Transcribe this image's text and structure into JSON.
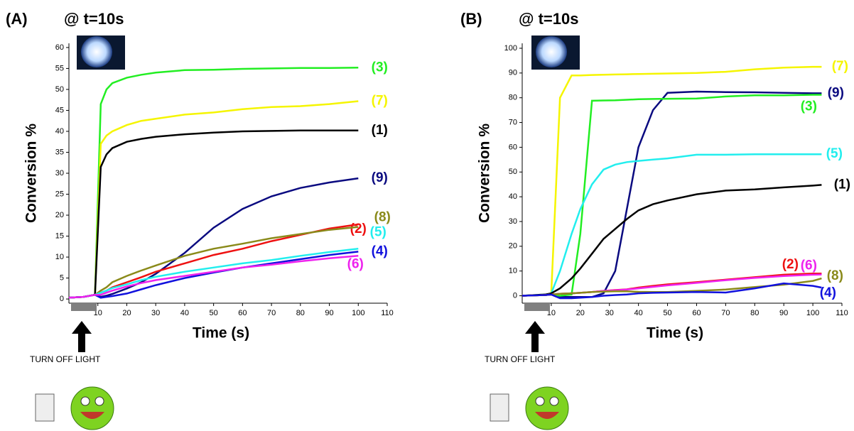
{
  "chart_data": [
    {
      "type": "line",
      "panel_label": "(A)",
      "annotation": "@ t=10s",
      "x_label": "Time (s)",
      "y_label": "Conversion %",
      "note": "TURN OFF LIGHT",
      "xlim": [
        0,
        110
      ],
      "ylim": [
        -1,
        61
      ],
      "xticks": [
        10,
        20,
        30,
        40,
        50,
        60,
        70,
        80,
        90,
        100,
        110
      ],
      "yticks": [
        0,
        5,
        10,
        15,
        20,
        25,
        30,
        35,
        40,
        45,
        50,
        55,
        60
      ],
      "x": [
        0,
        5,
        9,
        11,
        13,
        15,
        20,
        25,
        30,
        40,
        50,
        60,
        70,
        80,
        90,
        100
      ],
      "series": [
        {
          "name": "(3)",
          "color": "#22ee22",
          "values": [
            0.3,
            0.5,
            1,
            46.5,
            50,
            51.5,
            52.8,
            53.5,
            54,
            54.6,
            54.7,
            54.9,
            55,
            55.1,
            55.1,
            55.2
          ]
        },
        {
          "name": "(7)",
          "color": "#f5f500",
          "values": [
            0.3,
            0.5,
            1,
            37,
            39,
            40,
            41.5,
            42.5,
            43,
            44,
            44.5,
            45.3,
            45.8,
            46,
            46.5,
            47.2
          ]
        },
        {
          "name": "(1)",
          "color": "#000000",
          "values": [
            0.3,
            0.5,
            1,
            31.5,
            34.5,
            36,
            37.5,
            38.2,
            38.7,
            39.3,
            39.7,
            40,
            40.1,
            40.2,
            40.2,
            40.2
          ]
        },
        {
          "name": "(9)",
          "color": "#0a0a80",
          "values": [
            0.3,
            0.5,
            1,
            0.5,
            0.8,
            1.2,
            2.5,
            4,
            6,
            11,
            17,
            21.5,
            24.5,
            26.5,
            27.8,
            28.8
          ]
        },
        {
          "name": "(2)",
          "color": "#ee1111",
          "values": [
            0.3,
            0.5,
            1,
            1.5,
            2,
            2.8,
            4,
            5.2,
            6.5,
            8.5,
            10.5,
            12,
            13.8,
            15.3,
            16.8,
            17.8
          ]
        },
        {
          "name": "(8)",
          "color": "#8a8a1a",
          "values": [
            0.3,
            0.5,
            1,
            2,
            2.8,
            4,
            5.5,
            6.8,
            8,
            10.3,
            12,
            13.2,
            14.5,
            15.5,
            16.5,
            17.2
          ]
        },
        {
          "name": "(5)",
          "color": "#22eeee",
          "values": [
            0.3,
            0.5,
            1,
            1.5,
            2,
            2.6,
            3.5,
            4.5,
            5.3,
            6.5,
            7.5,
            8.5,
            9.3,
            10.3,
            11.2,
            12
          ]
        },
        {
          "name": "(4)",
          "color": "#1111dd",
          "values": [
            0.3,
            0.5,
            1,
            0.3,
            0.5,
            0.7,
            1.3,
            2.3,
            3.3,
            5,
            6.3,
            7.5,
            8.5,
            9.5,
            10.5,
            11.3
          ]
        },
        {
          "name": "(6)",
          "color": "#ee22ee",
          "values": [
            0.3,
            0.5,
            1,
            1,
            1.5,
            2,
            3,
            3.8,
            4.5,
            5.5,
            6.5,
            7.5,
            8.2,
            9,
            9.7,
            10.3
          ]
        }
      ]
    },
    {
      "type": "line",
      "panel_label": "(B)",
      "annotation": "@ t=10s",
      "x_label": "Time (s)",
      "y_label": "Conversion %",
      "note": "TURN OFF LIGHT",
      "xlim": [
        0,
        110
      ],
      "ylim": [
        -3,
        102
      ],
      "xticks": [
        10,
        20,
        30,
        40,
        50,
        60,
        70,
        80,
        90,
        100,
        110
      ],
      "yticks": [
        0,
        10,
        20,
        30,
        40,
        50,
        60,
        70,
        80,
        90,
        100
      ],
      "x": [
        0,
        8,
        10,
        13,
        17,
        20,
        24,
        28,
        32,
        36,
        40,
        45,
        50,
        60,
        70,
        80,
        90,
        100,
        103
      ],
      "series": [
        {
          "name": "(7)",
          "color": "#f5f500",
          "values": [
            0,
            0.5,
            1,
            80,
            89,
            89,
            89.2,
            89.3,
            89.4,
            89.5,
            89.6,
            89.7,
            89.8,
            90,
            90.5,
            91.5,
            92.2,
            92.5,
            92.5
          ]
        },
        {
          "name": "(9)",
          "color": "#0a0a80",
          "values": [
            0,
            0.3,
            0.5,
            -0.5,
            -0.5,
            -0.5,
            -0.5,
            1,
            10,
            35,
            60,
            75,
            82,
            82.5,
            82.3,
            82.2,
            82,
            81.8,
            81.8
          ]
        },
        {
          "name": "(3)",
          "color": "#22ee22",
          "values": [
            0,
            0.3,
            0.5,
            0,
            0.5,
            25,
            78.8,
            78.9,
            79,
            79.2,
            79.4,
            79.5,
            79.6,
            79.7,
            80.5,
            81,
            81,
            81.2,
            81.2
          ]
        },
        {
          "name": "(5)",
          "color": "#22eeee",
          "values": [
            0,
            0.5,
            1,
            10,
            25,
            35,
            45,
            51,
            53,
            54,
            54.5,
            55,
            55.5,
            57,
            57,
            57.2,
            57.2,
            57.2,
            57.2
          ]
        },
        {
          "name": "(1)",
          "color": "#000000",
          "values": [
            0,
            0.5,
            1,
            3,
            7,
            11,
            17,
            23,
            27,
            31,
            34.5,
            37,
            38.5,
            41,
            42.5,
            43,
            43.8,
            44.5,
            44.8
          ]
        },
        {
          "name": "(2)",
          "color": "#ee1111",
          "values": [
            0,
            0.3,
            0.5,
            0.8,
            1,
            1.2,
            1.5,
            2,
            2.3,
            2.6,
            3.3,
            4,
            4.6,
            5.5,
            6.5,
            7.5,
            8.5,
            9,
            9
          ]
        },
        {
          "name": "(6)",
          "color": "#ee22ee",
          "values": [
            0,
            0.3,
            0.5,
            0.8,
            1,
            1.2,
            1.5,
            2,
            2.2,
            2.5,
            3,
            3.6,
            4.2,
            5.2,
            6.3,
            7.2,
            8,
            8.5,
            8.6
          ]
        },
        {
          "name": "(8)",
          "color": "#8a8a1a",
          "values": [
            0,
            0.3,
            0.5,
            0.8,
            1,
            1.2,
            1.5,
            1.7,
            1.8,
            1.8,
            1.6,
            1.5,
            1.5,
            2,
            2.5,
            3.5,
            4.5,
            6,
            7
          ]
        },
        {
          "name": "(4)",
          "color": "#1111dd",
          "values": [
            0,
            0.3,
            0.5,
            -1,
            -1,
            -0.8,
            -0.5,
            0,
            0.3,
            0.5,
            1,
            1.2,
            1.3,
            1.5,
            1.3,
            3,
            5,
            4,
            3.3
          ]
        }
      ]
    }
  ]
}
